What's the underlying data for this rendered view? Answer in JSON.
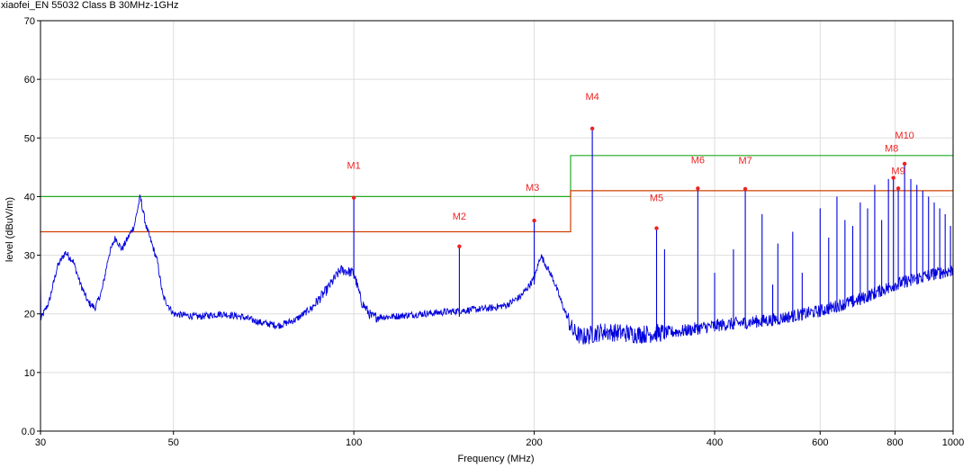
{
  "chart_data": {
    "type": "line",
    "title": "xiaofei_EN 55032 Class B 30MHz-1GHz",
    "xlabel": "Frequency (MHz)",
    "ylabel": "level (dBuV/m)",
    "xscale": "log",
    "xlim": [
      30,
      1000
    ],
    "ylim": [
      0,
      70
    ],
    "x_ticks": [
      30,
      50,
      100,
      200,
      400,
      600,
      800,
      1000
    ],
    "y_ticks": [
      0,
      10,
      20,
      30,
      40,
      50,
      60,
      70
    ],
    "y_tick_labels": [
      "0.0",
      "10",
      "20",
      "30",
      "40",
      "50",
      "60",
      "70"
    ],
    "grid": true,
    "colors": {
      "trace": "#0000dd",
      "qp_limit": "#d04000",
      "pk_limit": "#22aa22",
      "marker": "#ee2222",
      "grid": "#dddddd"
    },
    "limit_lines": [
      {
        "color": "#22aa22",
        "points": [
          [
            30,
            40
          ],
          [
            230,
            40
          ],
          [
            230,
            47
          ],
          [
            1000,
            47
          ]
        ]
      },
      {
        "color": "#d04000",
        "points": [
          [
            30,
            34
          ],
          [
            230,
            34
          ],
          [
            230,
            41
          ],
          [
            1000,
            41
          ]
        ]
      }
    ],
    "trace_anchors": [
      [
        30,
        19
      ],
      [
        31,
        22
      ],
      [
        32,
        28
      ],
      [
        33,
        30.5
      ],
      [
        34,
        29
      ],
      [
        35,
        25
      ],
      [
        36,
        22
      ],
      [
        37,
        21
      ],
      [
        38,
        24
      ],
      [
        39,
        30
      ],
      [
        40,
        33
      ],
      [
        41,
        31
      ],
      [
        42,
        33
      ],
      [
        43,
        35
      ],
      [
        44,
        40
      ],
      [
        45,
        35
      ],
      [
        46,
        32
      ],
      [
        47,
        29
      ],
      [
        48,
        23
      ],
      [
        50,
        20
      ],
      [
        55,
        19.5
      ],
      [
        60,
        20
      ],
      [
        65,
        19.5
      ],
      [
        70,
        18.5
      ],
      [
        75,
        18
      ],
      [
        80,
        19
      ],
      [
        85,
        21
      ],
      [
        90,
        24
      ],
      [
        95,
        27.5
      ],
      [
        100,
        27
      ],
      [
        103,
        22
      ],
      [
        107,
        19.5
      ],
      [
        115,
        19.5
      ],
      [
        130,
        20
      ],
      [
        150,
        20.5
      ],
      [
        170,
        21
      ],
      [
        180,
        21.5
      ],
      [
        190,
        23
      ],
      [
        200,
        26
      ],
      [
        205,
        30
      ],
      [
        210,
        28
      ],
      [
        215,
        26
      ],
      [
        222,
        22
      ],
      [
        232,
        17
      ],
      [
        240,
        16
      ],
      [
        260,
        17
      ],
      [
        300,
        16.5
      ],
      [
        350,
        17
      ],
      [
        400,
        18
      ],
      [
        450,
        18.5
      ],
      [
        500,
        19
      ],
      [
        600,
        20.5
      ],
      [
        700,
        22.5
      ],
      [
        800,
        25
      ],
      [
        900,
        26.5
      ],
      [
        1000,
        27.5
      ]
    ],
    "spikes": [
      [
        100,
        39.8
      ],
      [
        150,
        31.5
      ],
      [
        200,
        35.9
      ],
      [
        250,
        51.6
      ],
      [
        320,
        34.6
      ],
      [
        375,
        41.4
      ],
      [
        450,
        41.3
      ],
      [
        330,
        31
      ],
      [
        400,
        27
      ],
      [
        430,
        31
      ],
      [
        480,
        37
      ],
      [
        500,
        25
      ],
      [
        510,
        32
      ],
      [
        540,
        34
      ],
      [
        560,
        27
      ],
      [
        600,
        38
      ],
      [
        620,
        33
      ],
      [
        640,
        40
      ],
      [
        660,
        36
      ],
      [
        680,
        35
      ],
      [
        700,
        39
      ],
      [
        720,
        38
      ],
      [
        740,
        42
      ],
      [
        760,
        36
      ],
      [
        780,
        43
      ],
      [
        795,
        43.2
      ],
      [
        810,
        41.4
      ],
      [
        830,
        45.6
      ],
      [
        850,
        43
      ],
      [
        870,
        42
      ],
      [
        890,
        41
      ],
      [
        910,
        40
      ],
      [
        930,
        39
      ],
      [
        950,
        38
      ],
      [
        970,
        37
      ],
      [
        990,
        35
      ]
    ],
    "markers": [
      {
        "label": "M1",
        "x": 100,
        "y": 39.8
      },
      {
        "label": "M2",
        "x": 150,
        "y": 31.5
      },
      {
        "label": "M3",
        "x": 200,
        "y": 35.9
      },
      {
        "label": "M4",
        "x": 250,
        "y": 51.6
      },
      {
        "label": "M5",
        "x": 320,
        "y": 34.6
      },
      {
        "label": "M6",
        "x": 375,
        "y": 41.4
      },
      {
        "label": "M7",
        "x": 450,
        "y": 41.3
      },
      {
        "label": "M8",
        "x": 795,
        "y": 43.2
      },
      {
        "label": "M9",
        "x": 810,
        "y": 41.4
      },
      {
        "label": "M10",
        "x": 830,
        "y": 45.6
      }
    ]
  }
}
